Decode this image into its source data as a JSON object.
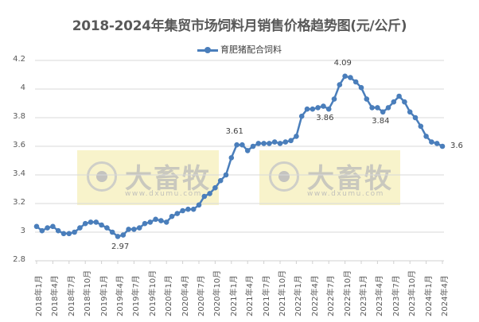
{
  "chart_data": {
    "type": "line",
    "title": "2018-2024年集贸市场饲料月销售价格趋势图(元/公斤)",
    "xlabel": "",
    "ylabel": "",
    "ylim": [
      2.8,
      4.2
    ],
    "yticks": [
      "4.2",
      "4",
      "3.8",
      "3.6",
      "3.4",
      "3.2",
      "3",
      "2.8"
    ],
    "grid": true,
    "legend_position": "top",
    "x_tick_labels": [
      "2018年1月",
      "2018年4月",
      "2018年7月",
      "2018年10月",
      "2019年1月",
      "2019年4月",
      "2019年7月",
      "2019年10月",
      "2020年1月",
      "2020年4月",
      "2020年7月",
      "2020年10月",
      "2021年1月",
      "2021年4月",
      "2021年7月",
      "2021年10月",
      "2022年1月",
      "2022年4月",
      "2022年7月",
      "2022年10月",
      "2023年1月",
      "2023年4月",
      "2023年7月",
      "2023年10月",
      "2024年1月",
      "2024年4月"
    ],
    "series": [
      {
        "name": "育肥猪配合饲料",
        "color": "#4a7ebb",
        "values": [
          3.04,
          3.01,
          3.03,
          3.04,
          3.01,
          2.99,
          2.99,
          3.0,
          3.03,
          3.06,
          3.07,
          3.07,
          3.05,
          3.03,
          3.0,
          2.97,
          2.98,
          3.02,
          3.02,
          3.03,
          3.06,
          3.07,
          3.09,
          3.08,
          3.07,
          3.11,
          3.13,
          3.15,
          3.16,
          3.16,
          3.19,
          3.25,
          3.27,
          3.31,
          3.36,
          3.4,
          3.52,
          3.61,
          3.61,
          3.57,
          3.6,
          3.62,
          3.62,
          3.62,
          3.63,
          3.62,
          3.63,
          3.64,
          3.67,
          3.81,
          3.86,
          3.86,
          3.87,
          3.88,
          3.86,
          3.93,
          4.03,
          4.09,
          4.08,
          4.05,
          4.01,
          3.93,
          3.87,
          3.87,
          3.84,
          3.87,
          3.91,
          3.95,
          3.91,
          3.84,
          3.8,
          3.74,
          3.67,
          3.63,
          3.62,
          3.6
        ]
      }
    ],
    "annotations": [
      {
        "label": "2.97",
        "index": 15
      },
      {
        "label": "3.61",
        "index": 37
      },
      {
        "label": "3.86",
        "index": 54
      },
      {
        "label": "4.09",
        "index": 57
      },
      {
        "label": "3.84",
        "index": 64
      },
      {
        "label": "3.6",
        "index": 75
      }
    ]
  },
  "legend": {
    "label": "育肥猪配合饲料"
  },
  "watermark": {
    "brand": "大畜牧",
    "url": "www.dxumu.com"
  }
}
